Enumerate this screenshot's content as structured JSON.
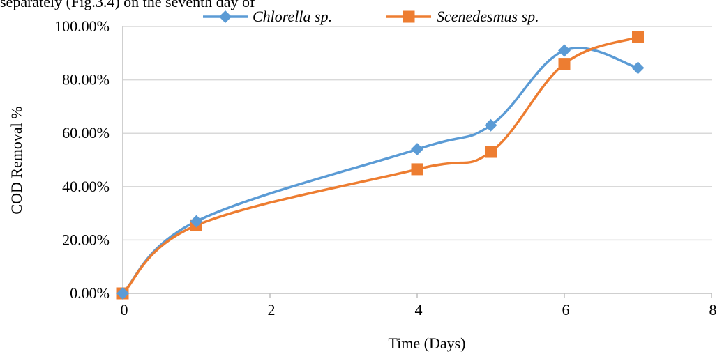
{
  "top_text": "separately (Fig.3.4) on the seventh day of",
  "colors": {
    "series_1": "#5b9bd5",
    "series_2": "#ed7d31",
    "grid": "#d9d9d9",
    "axis": "#bfbfbf"
  },
  "chart_data": {
    "type": "line",
    "title": "",
    "xlabel": "Time (Days)",
    "ylabel": "COD Removal %",
    "xlim": [
      0,
      8
    ],
    "ylim": [
      0,
      100
    ],
    "x_ticks": [
      0,
      2,
      4,
      6,
      8
    ],
    "y_ticks": [
      0,
      20,
      40,
      60,
      80,
      100
    ],
    "x_tick_labels": [
      "0",
      "2",
      "4",
      "6",
      "8"
    ],
    "y_tick_labels": [
      "0.00%",
      "20.00%",
      "40.00%",
      "60.00%",
      "80.00%",
      "100.00%"
    ],
    "grid": "horizontal",
    "legend_position": "top",
    "smoothed": true,
    "series": [
      {
        "name": "Chlorella sp.",
        "marker": "diamond",
        "color": "#5b9bd5",
        "x": [
          0,
          1,
          4,
          5,
          6,
          7
        ],
        "y": [
          0,
          27,
          54,
          63,
          91,
          84.5
        ]
      },
      {
        "name": "Scenedesmus sp.",
        "marker": "square",
        "color": "#ed7d31",
        "x": [
          0,
          1,
          4,
          5,
          6,
          7
        ],
        "y": [
          0,
          25.5,
          46.5,
          53,
          86,
          96
        ]
      }
    ]
  }
}
